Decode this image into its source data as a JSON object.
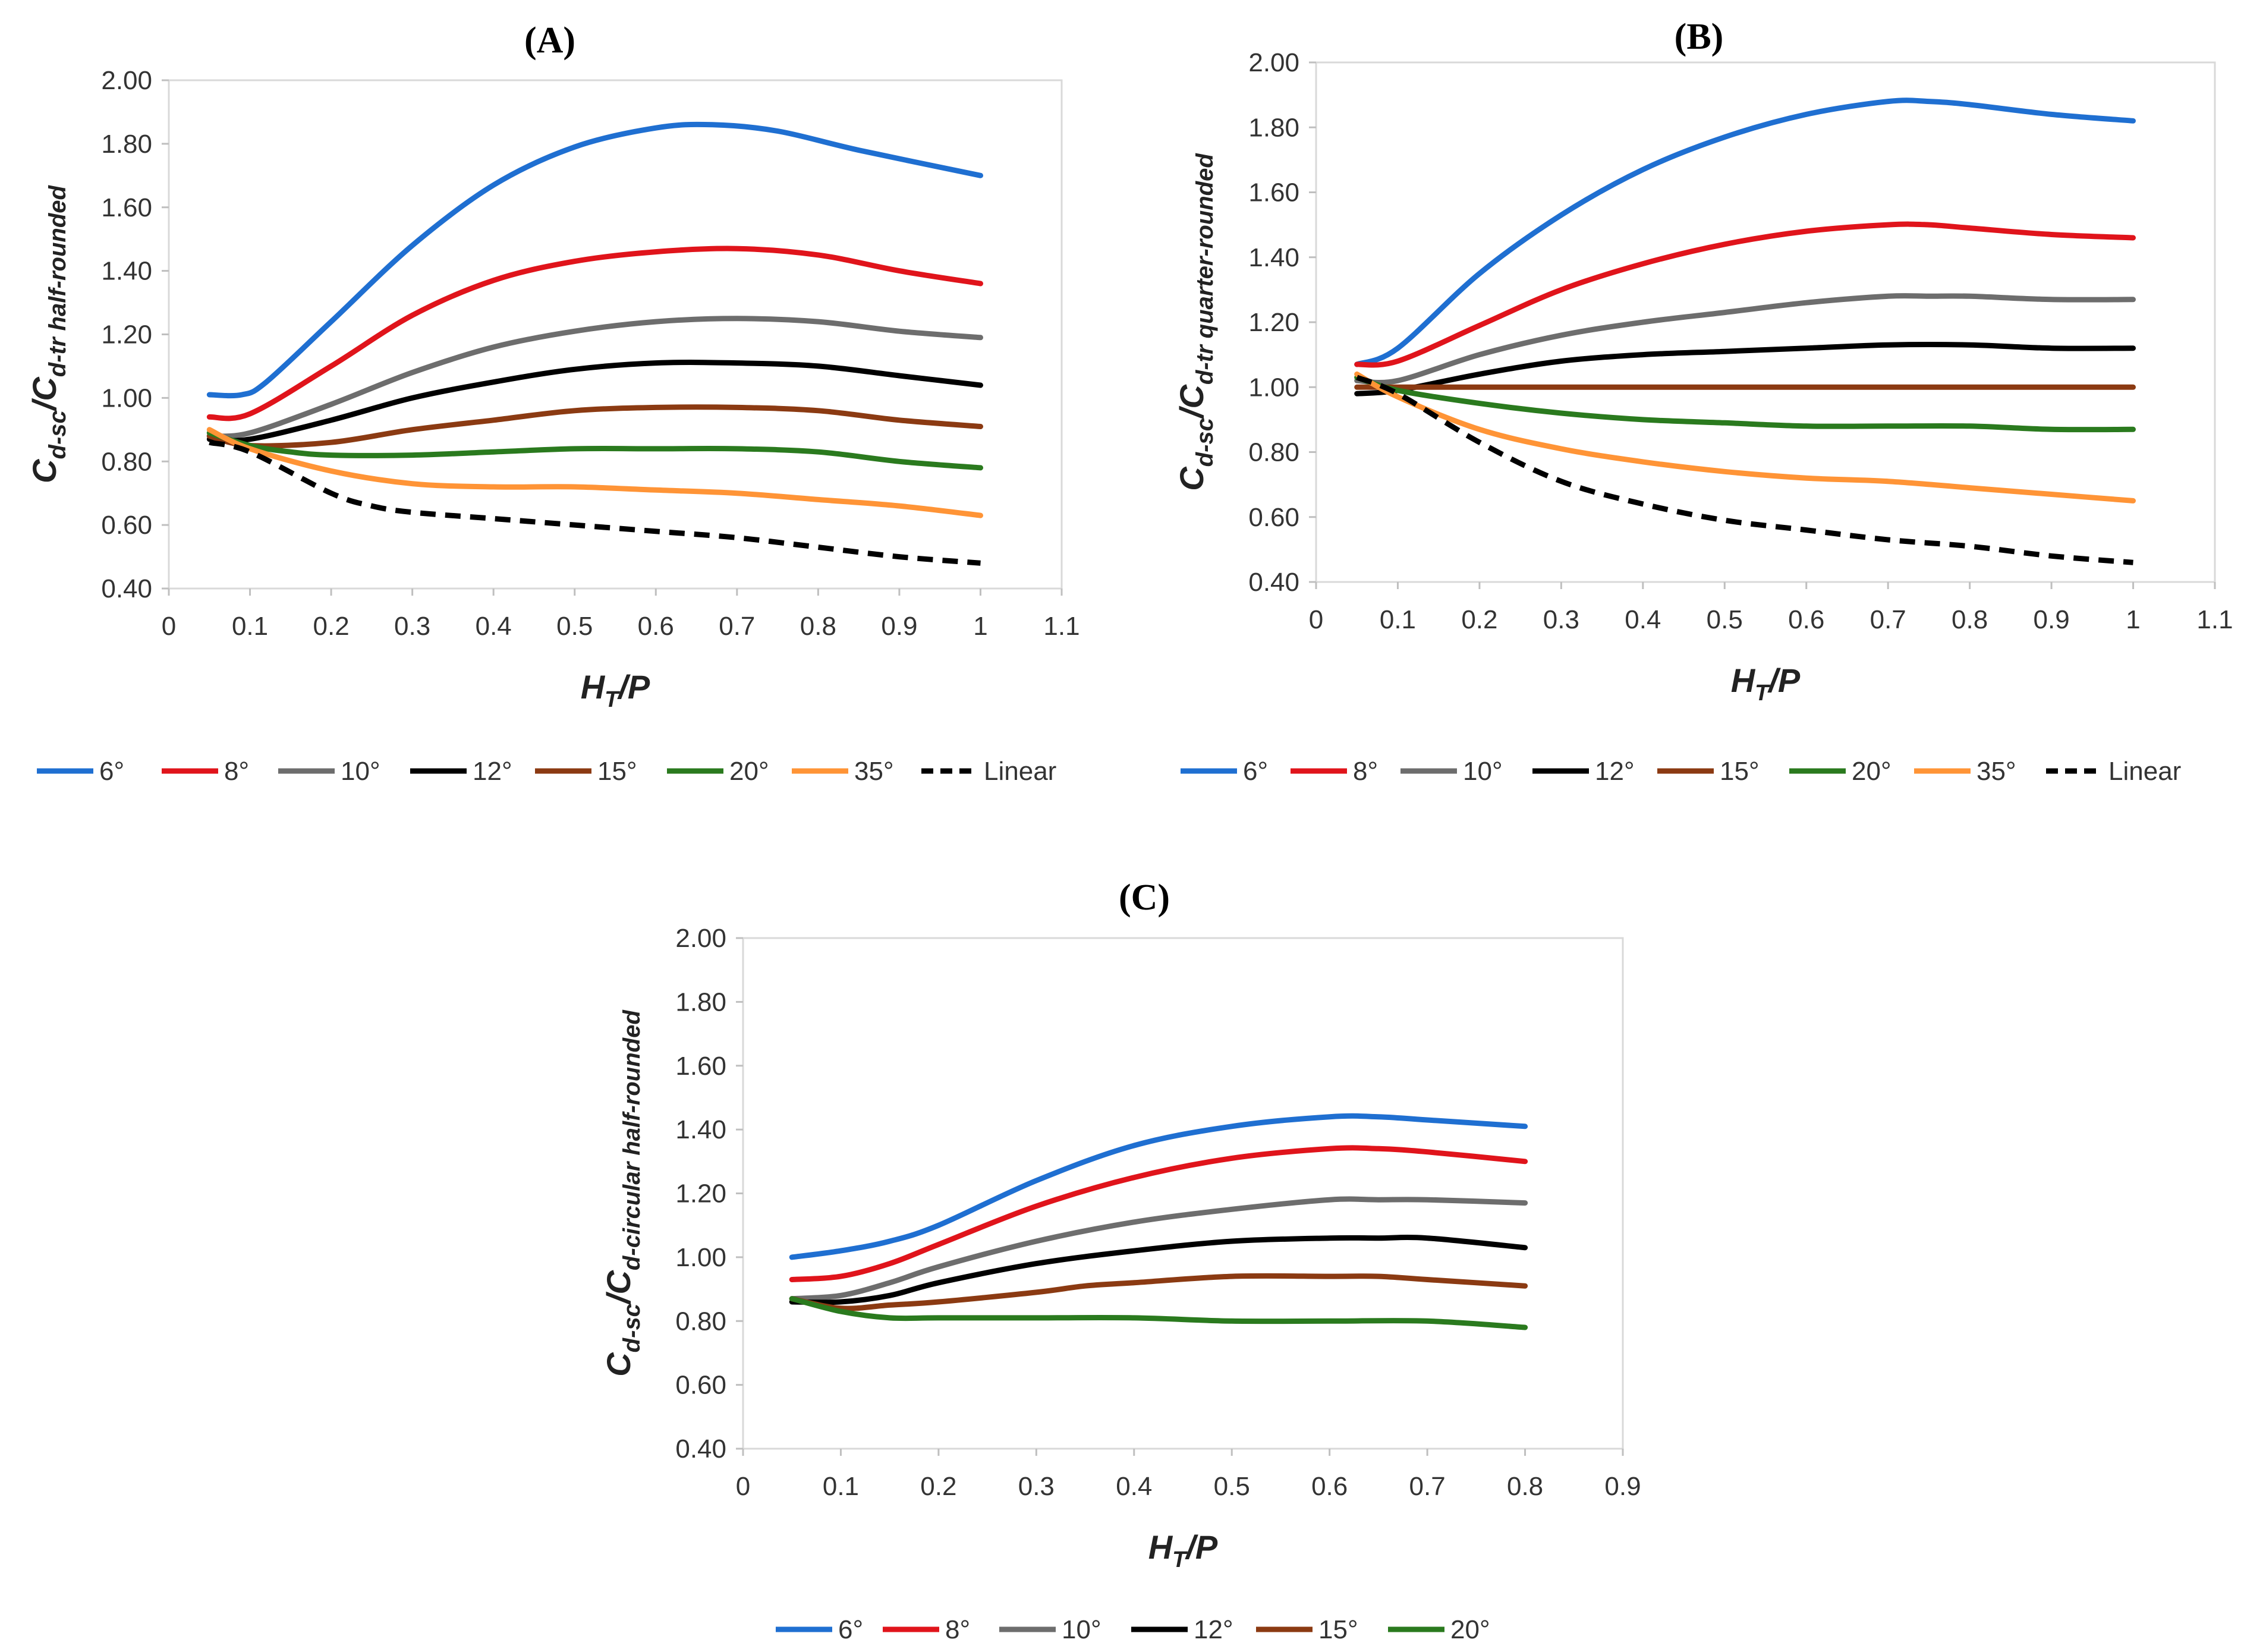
{
  "chart_data": [
    {
      "type": "line",
      "title": "(A)",
      "ylabel": {
        "main": "C",
        "sub1": "d-sc",
        "sep": "/C",
        "sub2": "d-tr half-rounded"
      },
      "xlabel": {
        "main": "H",
        "sub": "T",
        "rest": "/P"
      },
      "xlim": [
        0,
        1.1
      ],
      "ylim": [
        0.4,
        2.0
      ],
      "xticks": [
        "0",
        "0.1",
        "0.2",
        "0.3",
        "0.4",
        "0.5",
        "0.6",
        "0.7",
        "0.8",
        "0.9",
        "1",
        "1.1"
      ],
      "yticks": [
        "0.40",
        "0.60",
        "0.80",
        "1.00",
        "1.20",
        "1.40",
        "1.60",
        "1.80",
        "2.00"
      ],
      "series": [
        {
          "name": "6°",
          "color": "#1f6fd1",
          "dashed": false,
          "x": [
            0.05,
            0.09,
            0.12,
            0.2,
            0.3,
            0.4,
            0.5,
            0.6,
            0.67,
            0.75,
            0.85,
            1.0
          ],
          "y": [
            1.01,
            1.01,
            1.05,
            1.24,
            1.48,
            1.67,
            1.79,
            1.85,
            1.86,
            1.84,
            1.78,
            1.7
          ]
        },
        {
          "name": "8°",
          "color": "#e0141b",
          "dashed": false,
          "x": [
            0.05,
            0.1,
            0.2,
            0.3,
            0.4,
            0.5,
            0.6,
            0.7,
            0.8,
            0.9,
            1.0
          ],
          "y": [
            0.94,
            0.95,
            1.1,
            1.26,
            1.37,
            1.43,
            1.46,
            1.47,
            1.45,
            1.4,
            1.36
          ]
        },
        {
          "name": "10°",
          "color": "#6d6d6d",
          "dashed": false,
          "x": [
            0.05,
            0.1,
            0.2,
            0.3,
            0.4,
            0.5,
            0.6,
            0.7,
            0.8,
            0.9,
            1.0
          ],
          "y": [
            0.88,
            0.89,
            0.98,
            1.08,
            1.16,
            1.21,
            1.24,
            1.25,
            1.24,
            1.21,
            1.19
          ]
        },
        {
          "name": "12°",
          "color": "#000000",
          "dashed": false,
          "x": [
            0.05,
            0.1,
            0.2,
            0.3,
            0.4,
            0.5,
            0.6,
            0.7,
            0.8,
            0.9,
            1.0
          ],
          "y": [
            0.87,
            0.87,
            0.93,
            1.0,
            1.05,
            1.09,
            1.11,
            1.11,
            1.1,
            1.07,
            1.04
          ]
        },
        {
          "name": "15°",
          "color": "#8b3a12",
          "dashed": false,
          "x": [
            0.05,
            0.1,
            0.2,
            0.3,
            0.4,
            0.5,
            0.6,
            0.7,
            0.8,
            0.9,
            1.0
          ],
          "y": [
            0.88,
            0.85,
            0.86,
            0.9,
            0.93,
            0.96,
            0.97,
            0.97,
            0.96,
            0.93,
            0.91
          ]
        },
        {
          "name": "20°",
          "color": "#2a7a1e",
          "dashed": false,
          "x": [
            0.05,
            0.1,
            0.15,
            0.2,
            0.3,
            0.4,
            0.5,
            0.6,
            0.7,
            0.8,
            0.9,
            1.0
          ],
          "y": [
            0.89,
            0.85,
            0.83,
            0.82,
            0.82,
            0.83,
            0.84,
            0.84,
            0.84,
            0.83,
            0.8,
            0.78
          ]
        },
        {
          "name": "35°",
          "color": "#ff9436",
          "dashed": false,
          "x": [
            0.05,
            0.1,
            0.2,
            0.3,
            0.4,
            0.5,
            0.6,
            0.7,
            0.8,
            0.9,
            1.0
          ],
          "y": [
            0.9,
            0.84,
            0.77,
            0.73,
            0.72,
            0.72,
            0.71,
            0.7,
            0.68,
            0.66,
            0.63
          ]
        },
        {
          "name": "Linear",
          "color": "#000000",
          "dashed": true,
          "x": [
            0.05,
            0.1,
            0.2,
            0.25,
            0.3,
            0.4,
            0.5,
            0.6,
            0.7,
            0.8,
            0.9,
            1.0
          ],
          "y": [
            0.86,
            0.83,
            0.7,
            0.66,
            0.64,
            0.62,
            0.6,
            0.58,
            0.56,
            0.53,
            0.5,
            0.48
          ]
        }
      ]
    },
    {
      "type": "line",
      "title": "(B)",
      "ylabel": {
        "main": "C",
        "sub1": "d-sc",
        "sep": "/C",
        "sub2": "d-tr quarter-rounded"
      },
      "xlabel": {
        "main": "H",
        "sub": "T",
        "rest": "/P"
      },
      "xlim": [
        0,
        1.1
      ],
      "ylim": [
        0.4,
        2.0
      ],
      "xticks": [
        "0",
        "0.1",
        "0.2",
        "0.3",
        "0.4",
        "0.5",
        "0.6",
        "0.7",
        "0.8",
        "0.9",
        "1",
        "1.1"
      ],
      "yticks": [
        "0.40",
        "0.60",
        "0.80",
        "1.00",
        "1.20",
        "1.40",
        "1.60",
        "1.80",
        "2.00"
      ],
      "series": [
        {
          "name": "6°",
          "color": "#1f6fd1",
          "dashed": false,
          "x": [
            0.05,
            0.1,
            0.2,
            0.3,
            0.4,
            0.5,
            0.6,
            0.7,
            0.75,
            0.8,
            0.9,
            1.0
          ],
          "y": [
            1.07,
            1.12,
            1.35,
            1.53,
            1.67,
            1.77,
            1.84,
            1.88,
            1.88,
            1.87,
            1.84,
            1.82
          ]
        },
        {
          "name": "8°",
          "color": "#e0141b",
          "dashed": false,
          "x": [
            0.05,
            0.1,
            0.2,
            0.3,
            0.4,
            0.5,
            0.6,
            0.7,
            0.75,
            0.8,
            0.9,
            1.0
          ],
          "y": [
            1.07,
            1.08,
            1.19,
            1.3,
            1.38,
            1.44,
            1.48,
            1.5,
            1.5,
            1.49,
            1.47,
            1.46
          ]
        },
        {
          "name": "10°",
          "color": "#6d6d6d",
          "dashed": false,
          "x": [
            0.05,
            0.1,
            0.2,
            0.3,
            0.4,
            0.5,
            0.6,
            0.7,
            0.75,
            0.8,
            0.9,
            1.0
          ],
          "y": [
            1.02,
            1.02,
            1.1,
            1.16,
            1.2,
            1.23,
            1.26,
            1.28,
            1.28,
            1.28,
            1.27,
            1.27
          ]
        },
        {
          "name": "12°",
          "color": "#000000",
          "dashed": false,
          "x": [
            0.05,
            0.1,
            0.2,
            0.3,
            0.4,
            0.5,
            0.6,
            0.7,
            0.8,
            0.9,
            1.0
          ],
          "y": [
            0.98,
            0.99,
            1.04,
            1.08,
            1.1,
            1.11,
            1.12,
            1.13,
            1.13,
            1.12,
            1.12
          ]
        },
        {
          "name": "15°",
          "color": "#8b3a12",
          "dashed": false,
          "x": [
            0.05,
            0.1,
            0.2,
            0.3,
            0.4,
            0.5,
            0.6,
            0.7,
            0.8,
            0.9,
            1.0
          ],
          "y": [
            1.0,
            1.0,
            1.0,
            1.0,
            1.0,
            1.0,
            1.0,
            1.0,
            1.0,
            1.0,
            1.0
          ]
        },
        {
          "name": "20°",
          "color": "#2a7a1e",
          "dashed": false,
          "x": [
            0.05,
            0.1,
            0.2,
            0.3,
            0.4,
            0.5,
            0.6,
            0.7,
            0.8,
            0.9,
            1.0
          ],
          "y": [
            1.03,
            0.99,
            0.95,
            0.92,
            0.9,
            0.89,
            0.88,
            0.88,
            0.88,
            0.87,
            0.87
          ]
        },
        {
          "name": "35°",
          "color": "#ff9436",
          "dashed": false,
          "x": [
            0.05,
            0.1,
            0.2,
            0.3,
            0.4,
            0.5,
            0.6,
            0.7,
            0.8,
            0.9,
            1.0
          ],
          "y": [
            1.04,
            0.97,
            0.87,
            0.81,
            0.77,
            0.74,
            0.72,
            0.71,
            0.69,
            0.67,
            0.65
          ]
        },
        {
          "name": "Linear",
          "color": "#000000",
          "dashed": true,
          "x": [
            0.05,
            0.1,
            0.2,
            0.3,
            0.4,
            0.5,
            0.6,
            0.7,
            0.8,
            0.9,
            1.0
          ],
          "y": [
            1.03,
            0.98,
            0.83,
            0.71,
            0.64,
            0.59,
            0.56,
            0.53,
            0.51,
            0.48,
            0.46
          ]
        }
      ]
    },
    {
      "type": "line",
      "title": "(C)",
      "ylabel": {
        "main": "C",
        "sub1": "d-sc",
        "sep": "/C",
        "sub2": "d-circular half-rounded"
      },
      "xlabel": {
        "main": "H",
        "sub": "T",
        "rest": "/P"
      },
      "xlim": [
        0,
        0.9
      ],
      "ylim": [
        0.4,
        2.0
      ],
      "xticks": [
        "0",
        "0.1",
        "0.2",
        "0.3",
        "0.4",
        "0.5",
        "0.6",
        "0.7",
        "0.8",
        "0.9"
      ],
      "yticks": [
        "0.40",
        "0.60",
        "0.80",
        "1.00",
        "1.20",
        "1.40",
        "1.60",
        "1.80",
        "2.00"
      ],
      "series": [
        {
          "name": "6°",
          "color": "#1f6fd1",
          "dashed": false,
          "x": [
            0.05,
            0.1,
            0.15,
            0.2,
            0.3,
            0.4,
            0.5,
            0.6,
            0.65,
            0.7,
            0.8
          ],
          "y": [
            1.0,
            1.02,
            1.05,
            1.1,
            1.24,
            1.35,
            1.41,
            1.44,
            1.44,
            1.43,
            1.41
          ]
        },
        {
          "name": "8°",
          "color": "#e0141b",
          "dashed": false,
          "x": [
            0.05,
            0.1,
            0.15,
            0.2,
            0.3,
            0.4,
            0.5,
            0.6,
            0.65,
            0.7,
            0.8
          ],
          "y": [
            0.93,
            0.94,
            0.98,
            1.04,
            1.16,
            1.25,
            1.31,
            1.34,
            1.34,
            1.33,
            1.3
          ]
        },
        {
          "name": "10°",
          "color": "#6d6d6d",
          "dashed": false,
          "x": [
            0.05,
            0.1,
            0.15,
            0.2,
            0.3,
            0.4,
            0.5,
            0.6,
            0.65,
            0.7,
            0.8
          ],
          "y": [
            0.87,
            0.88,
            0.92,
            0.97,
            1.05,
            1.11,
            1.15,
            1.18,
            1.18,
            1.18,
            1.17
          ]
        },
        {
          "name": "12°",
          "color": "#000000",
          "dashed": false,
          "x": [
            0.05,
            0.1,
            0.15,
            0.2,
            0.3,
            0.4,
            0.5,
            0.6,
            0.65,
            0.7,
            0.8
          ],
          "y": [
            0.86,
            0.86,
            0.88,
            0.92,
            0.98,
            1.02,
            1.05,
            1.06,
            1.06,
            1.06,
            1.03
          ]
        },
        {
          "name": "15°",
          "color": "#8b3a12",
          "dashed": false,
          "x": [
            0.05,
            0.1,
            0.15,
            0.2,
            0.3,
            0.35,
            0.4,
            0.5,
            0.6,
            0.65,
            0.7,
            0.8
          ],
          "y": [
            0.87,
            0.84,
            0.85,
            0.86,
            0.89,
            0.91,
            0.92,
            0.94,
            0.94,
            0.94,
            0.93,
            0.91
          ]
        },
        {
          "name": "20°",
          "color": "#2a7a1e",
          "dashed": false,
          "x": [
            0.05,
            0.1,
            0.15,
            0.2,
            0.3,
            0.4,
            0.5,
            0.6,
            0.7,
            0.8
          ],
          "y": [
            0.87,
            0.83,
            0.81,
            0.81,
            0.81,
            0.81,
            0.8,
            0.8,
            0.8,
            0.78
          ]
        }
      ]
    }
  ]
}
